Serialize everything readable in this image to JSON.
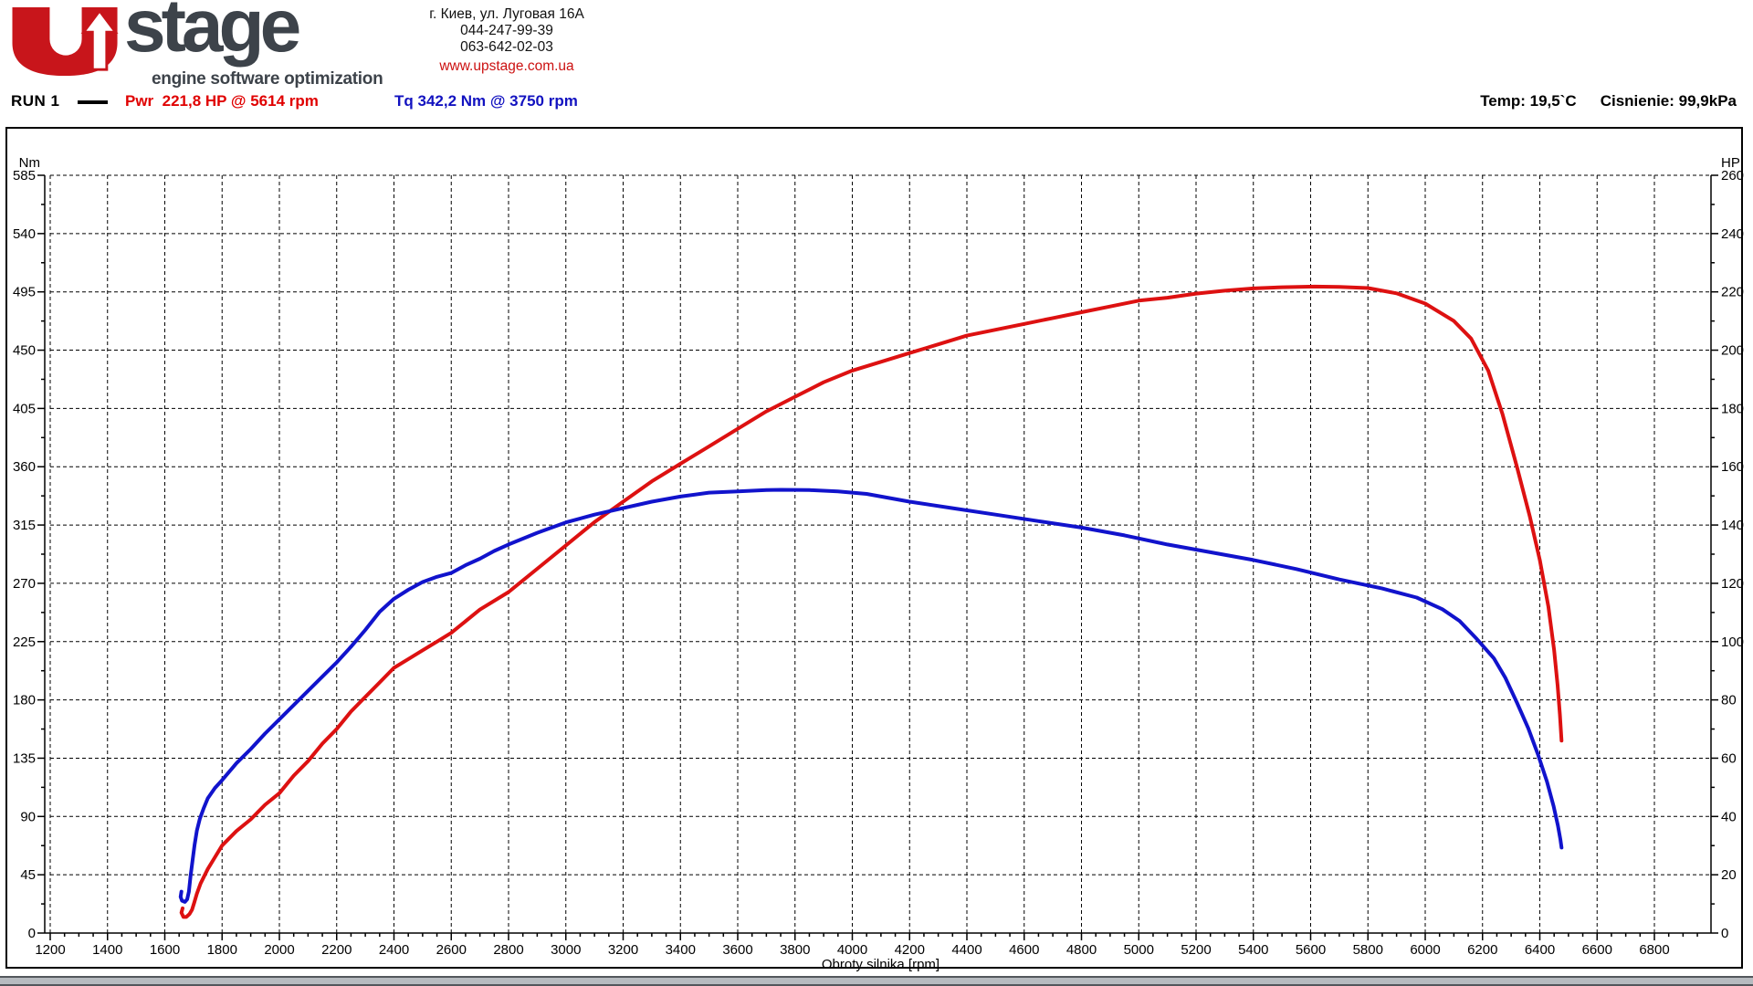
{
  "header": {
    "logo": {
      "brand": "stage",
      "tagline": "engine software optimization",
      "accent_color": "#c8151b",
      "text_color": "#3d434a"
    },
    "contact": {
      "address": "г. Киев, ул. Луговая 16А",
      "phone1": "044-247-99-39",
      "phone2": "063-642-02-03",
      "website": "www.upstage.com.ua"
    },
    "conditions": {
      "temperature": "Temp: 19,5`C",
      "pressure": "Cisnienie: 99,9kPa"
    }
  },
  "legend": {
    "run_label": "RUN 1",
    "power_text": "Pwr  221,8 HP @ 5614 rpm",
    "torque_text": "Tq 342,2 Nm @ 3750 rpm",
    "power_color": "#e00000",
    "torque_color": "#1212c0"
  },
  "chart_data": {
    "type": "line",
    "title": "",
    "grid": "dashed",
    "x_axis": {
      "label": "Obroty silnika [rpm]",
      "min": 1200,
      "max": 7000,
      "label_max": 6800,
      "major_step": 200,
      "minor_step": 50
    },
    "y_left": {
      "label": "Nm",
      "min": 0,
      "max": 585,
      "major_step": 45,
      "minor_step": 22.5
    },
    "y_right": {
      "label": "HP",
      "min": 0,
      "max": 260,
      "major_step": 20,
      "minor_step": 10
    },
    "series": [
      {
        "name": "Power",
        "unit": "HP",
        "axis": "right",
        "color": "#dd1111",
        "peak": "221,8 HP @ 5614 rpm",
        "points": [
          [
            1662,
            8.5
          ],
          [
            1658,
            7
          ],
          [
            1665,
            5.5
          ],
          [
            1675,
            5.5
          ],
          [
            1686,
            6.5
          ],
          [
            1695,
            8
          ],
          [
            1703,
            10.5
          ],
          [
            1712,
            13.5
          ],
          [
            1725,
            17
          ],
          [
            1750,
            22
          ],
          [
            1775,
            26
          ],
          [
            1800,
            30
          ],
          [
            1850,
            35
          ],
          [
            1900,
            39
          ],
          [
            1950,
            44
          ],
          [
            2000,
            48
          ],
          [
            2050,
            54
          ],
          [
            2100,
            59
          ],
          [
            2150,
            65
          ],
          [
            2200,
            70
          ],
          [
            2250,
            76
          ],
          [
            2300,
            81
          ],
          [
            2350,
            86
          ],
          [
            2400,
            91
          ],
          [
            2450,
            94
          ],
          [
            2500,
            97
          ],
          [
            2550,
            100
          ],
          [
            2600,
            103
          ],
          [
            2700,
            111
          ],
          [
            2800,
            117
          ],
          [
            2900,
            125
          ],
          [
            3000,
            133
          ],
          [
            3100,
            141
          ],
          [
            3200,
            148
          ],
          [
            3300,
            155
          ],
          [
            3400,
            161
          ],
          [
            3500,
            167
          ],
          [
            3600,
            173
          ],
          [
            3700,
            179
          ],
          [
            3800,
            184
          ],
          [
            3900,
            189
          ],
          [
            4000,
            193
          ],
          [
            4100,
            196
          ],
          [
            4200,
            199
          ],
          [
            4300,
            202
          ],
          [
            4400,
            205
          ],
          [
            4500,
            207
          ],
          [
            4600,
            209
          ],
          [
            4700,
            211
          ],
          [
            4800,
            213
          ],
          [
            4900,
            215
          ],
          [
            5000,
            217
          ],
          [
            5100,
            218
          ],
          [
            5200,
            219.4
          ],
          [
            5300,
            220.4
          ],
          [
            5400,
            221.2
          ],
          [
            5500,
            221.6
          ],
          [
            5614,
            221.8
          ],
          [
            5700,
            221.7
          ],
          [
            5800,
            221.3
          ],
          [
            5900,
            219.5
          ],
          [
            6000,
            216
          ],
          [
            6100,
            210
          ],
          [
            6160,
            204
          ],
          [
            6220,
            193
          ],
          [
            6270,
            178
          ],
          [
            6320,
            160
          ],
          [
            6365,
            143
          ],
          [
            6400,
            128
          ],
          [
            6430,
            112
          ],
          [
            6450,
            97
          ],
          [
            6462,
            85
          ],
          [
            6470,
            75
          ],
          [
            6476,
            66
          ]
        ]
      },
      {
        "name": "Torque",
        "unit": "Nm",
        "axis": "left",
        "color": "#1113cc",
        "peak": "342,2 Nm @ 3750 rpm",
        "points": [
          [
            1658,
            32
          ],
          [
            1655,
            28
          ],
          [
            1660,
            25
          ],
          [
            1670,
            24
          ],
          [
            1678,
            26
          ],
          [
            1684,
            32
          ],
          [
            1690,
            44
          ],
          [
            1697,
            56
          ],
          [
            1704,
            68
          ],
          [
            1712,
            79
          ],
          [
            1722,
            88
          ],
          [
            1735,
            96
          ],
          [
            1750,
            104
          ],
          [
            1775,
            112
          ],
          [
            1800,
            118
          ],
          [
            1850,
            131
          ],
          [
            1900,
            142
          ],
          [
            1950,
            154
          ],
          [
            2000,
            165
          ],
          [
            2050,
            176
          ],
          [
            2100,
            187
          ],
          [
            2150,
            198
          ],
          [
            2200,
            209
          ],
          [
            2250,
            221
          ],
          [
            2300,
            234
          ],
          [
            2350,
            248
          ],
          [
            2400,
            258
          ],
          [
            2450,
            265
          ],
          [
            2500,
            271
          ],
          [
            2550,
            275
          ],
          [
            2600,
            278
          ],
          [
            2650,
            284
          ],
          [
            2700,
            289
          ],
          [
            2750,
            295
          ],
          [
            2800,
            300
          ],
          [
            2900,
            309
          ],
          [
            3000,
            317
          ],
          [
            3100,
            323
          ],
          [
            3200,
            328
          ],
          [
            3300,
            333
          ],
          [
            3400,
            337
          ],
          [
            3500,
            340
          ],
          [
            3600,
            341
          ],
          [
            3700,
            342
          ],
          [
            3750,
            342.2
          ],
          [
            3850,
            342
          ],
          [
            3950,
            341
          ],
          [
            4050,
            339
          ],
          [
            4200,
            333
          ],
          [
            4350,
            328
          ],
          [
            4500,
            323
          ],
          [
            4650,
            318
          ],
          [
            4800,
            313
          ],
          [
            4950,
            307
          ],
          [
            5100,
            300
          ],
          [
            5250,
            294
          ],
          [
            5400,
            288
          ],
          [
            5550,
            281
          ],
          [
            5700,
            273
          ],
          [
            5850,
            266
          ],
          [
            5970,
            259
          ],
          [
            6060,
            250
          ],
          [
            6120,
            241
          ],
          [
            6180,
            227
          ],
          [
            6240,
            212
          ],
          [
            6280,
            197
          ],
          [
            6320,
            178
          ],
          [
            6360,
            158
          ],
          [
            6395,
            137
          ],
          [
            6425,
            117
          ],
          [
            6448,
            98
          ],
          [
            6463,
            83
          ],
          [
            6472,
            72
          ],
          [
            6476,
            66
          ]
        ]
      }
    ]
  }
}
